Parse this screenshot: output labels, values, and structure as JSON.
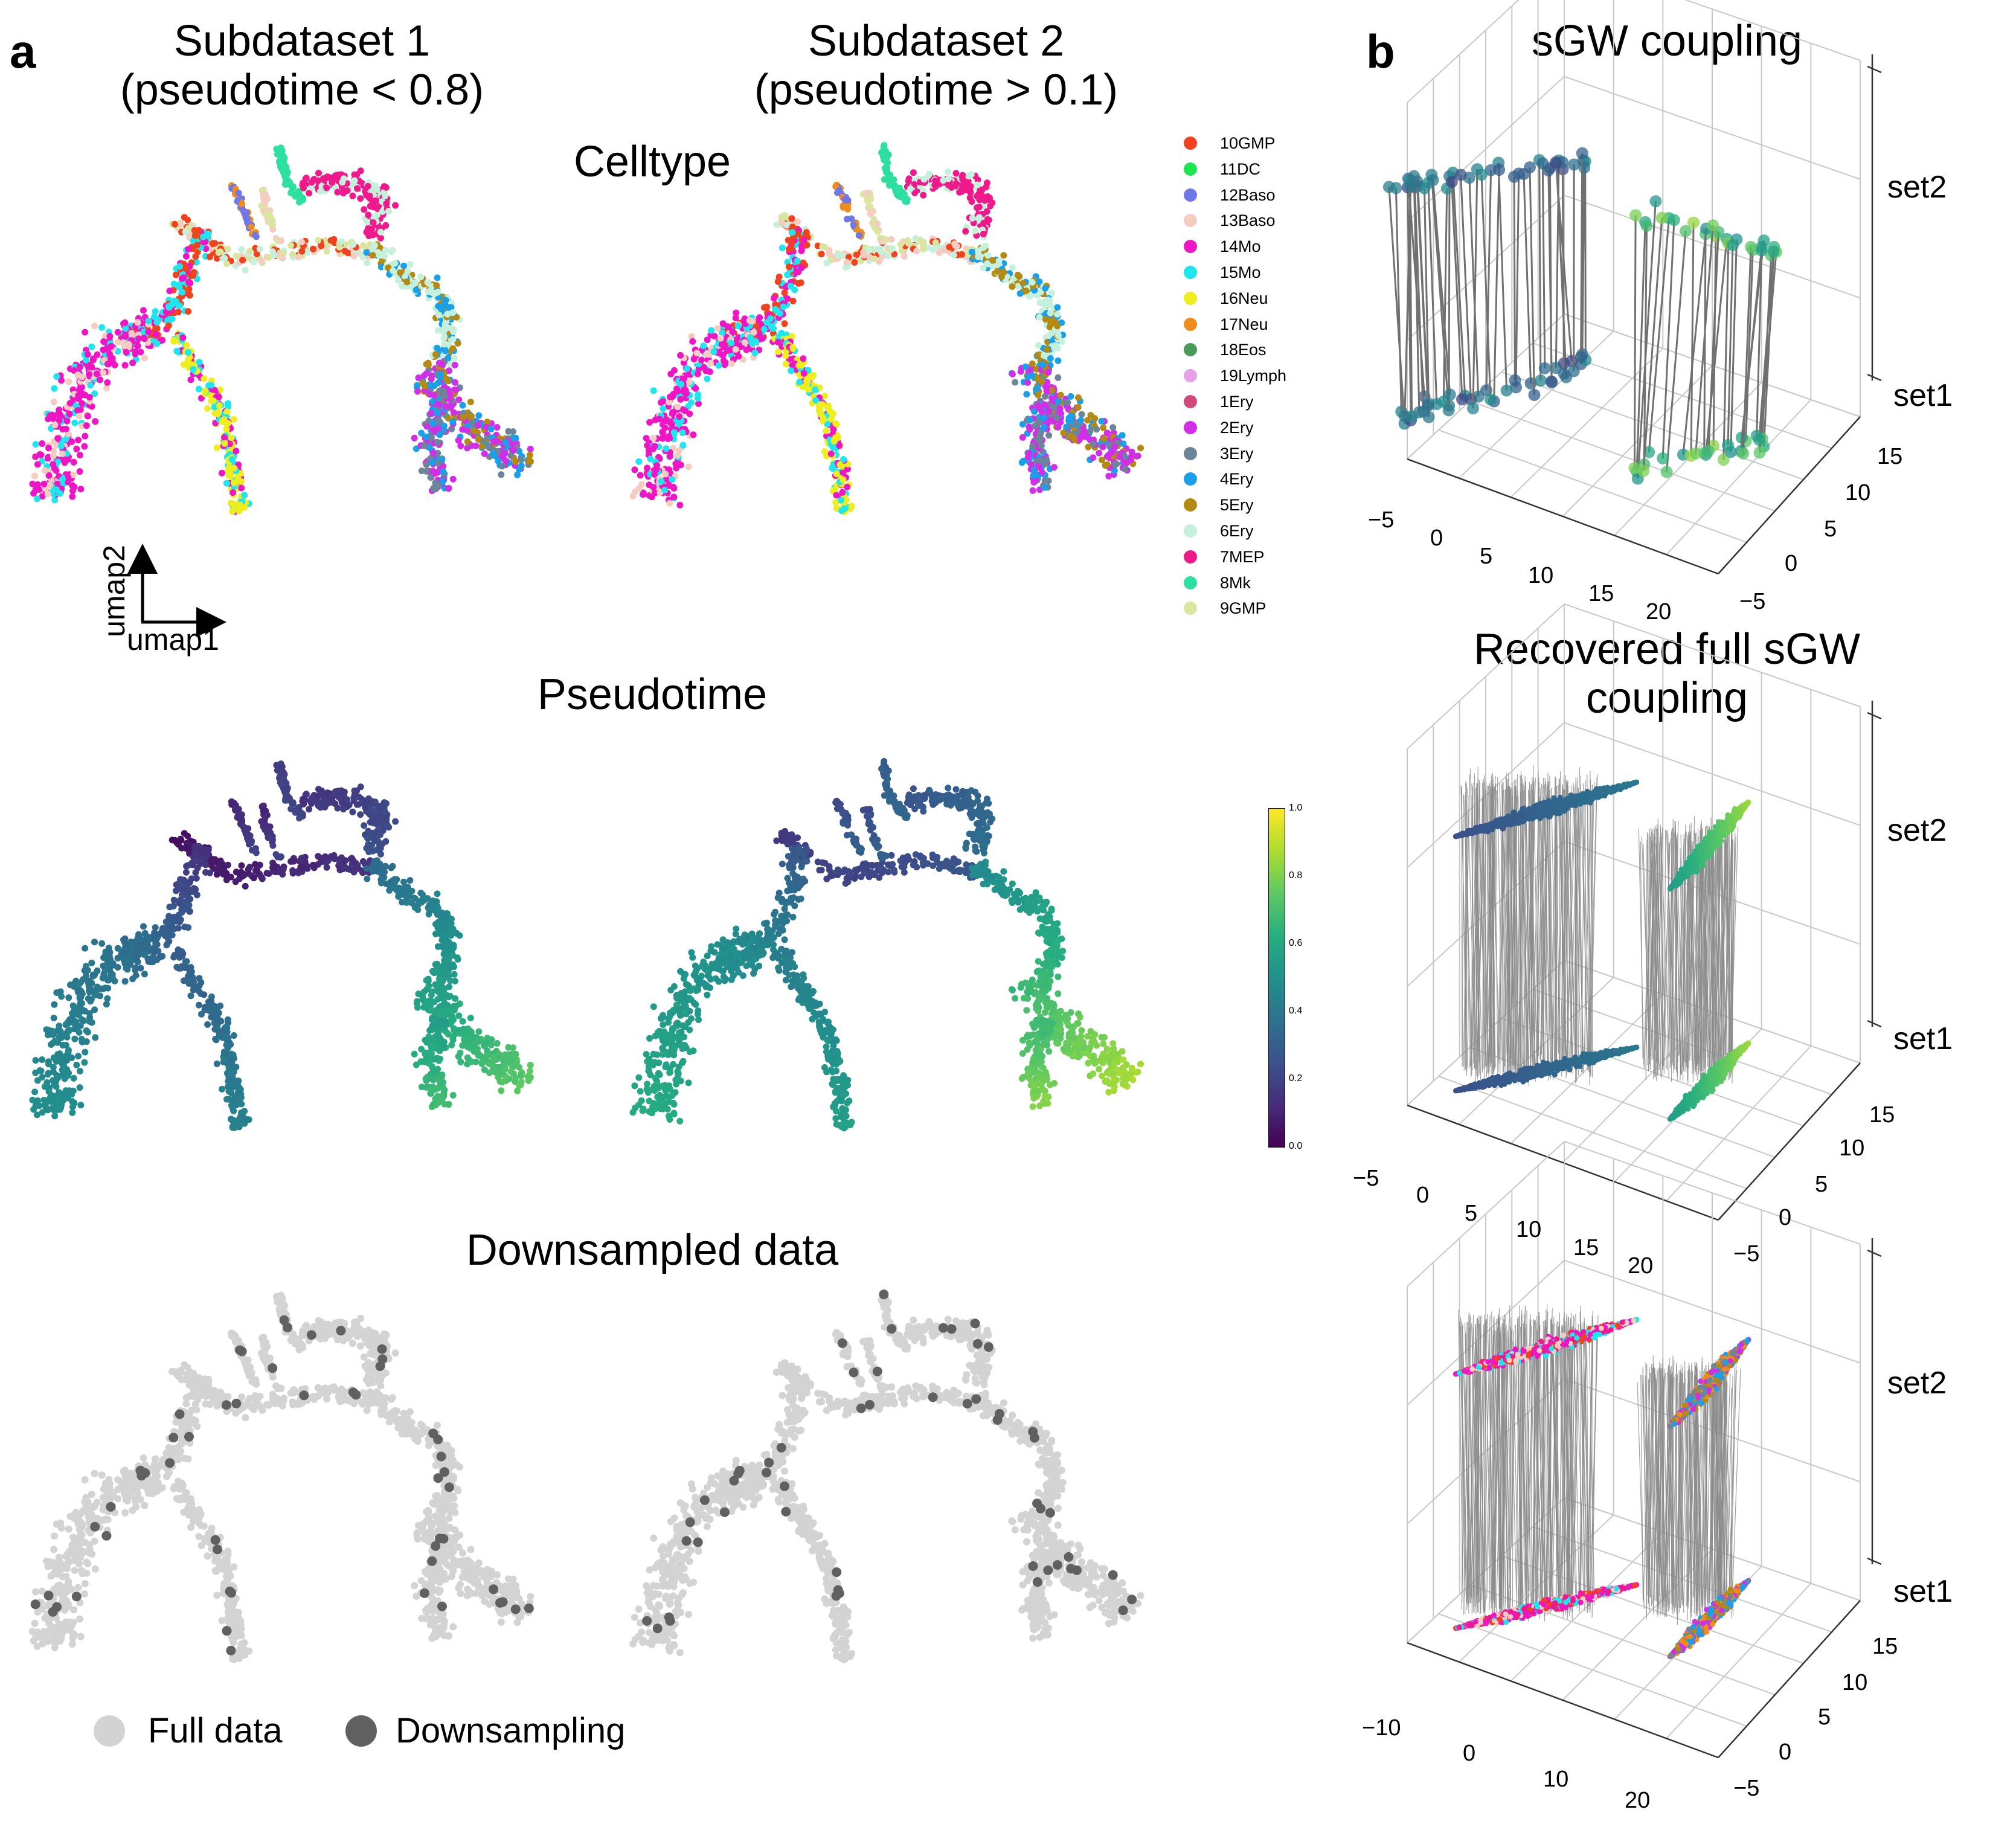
{
  "panels": {
    "a": "a",
    "b": "b"
  },
  "column_titles": {
    "sub1_line1": "Subdataset 1",
    "sub1_line2": "(pseudotime < 0.8)",
    "sub2_line1": "Subdataset 2",
    "sub2_line2": "(pseudotime > 0.1)"
  },
  "row_titles": {
    "celltype": "Celltype",
    "pseudotime": "Pseudotime",
    "downsampled": "Downsampled data"
  },
  "axes_arrows": {
    "x": "umap1",
    "y": "umap2"
  },
  "celltype_legend": [
    {
      "label": "10GMP",
      "color": "#f0421e"
    },
    {
      "label": "11DC",
      "color": "#1ee650"
    },
    {
      "label": "12Baso",
      "color": "#6e78e6"
    },
    {
      "label": "13Baso",
      "color": "#f5cdc0"
    },
    {
      "label": "14Mo",
      "color": "#ee16c4"
    },
    {
      "label": "15Mo",
      "color": "#1ee6ee"
    },
    {
      "label": "16Neu",
      "color": "#eeee1e"
    },
    {
      "label": "17Neu",
      "color": "#f08c1e"
    },
    {
      "label": "18Eos",
      "color": "#4a9a5a"
    },
    {
      "label": "19Lymph",
      "color": "#e8a0e8"
    },
    {
      "label": "1Ery",
      "color": "#d24a7a"
    },
    {
      "label": "2Ery",
      "color": "#d22ee8"
    },
    {
      "label": "3Ery",
      "color": "#6e8498"
    },
    {
      "label": "4Ery",
      "color": "#1aa0e8"
    },
    {
      "label": "5Ery",
      "color": "#b48a12"
    },
    {
      "label": "6Ery",
      "color": "#c4f0dc"
    },
    {
      "label": "7MEP",
      "color": "#ee1a8c"
    },
    {
      "label": "8Mk",
      "color": "#2ee0a0"
    },
    {
      "label": "9GMP",
      "color": "#d8e6a0"
    }
  ],
  "colorbar": {
    "ticks": [
      "1.0",
      "0.8",
      "0.6",
      "0.4",
      "0.2",
      "0.0"
    ],
    "min": 0.0,
    "max": 1.0,
    "colormap": "viridis"
  },
  "bottom_legend": {
    "full": {
      "label": "Full data",
      "color": "#d3d3d3"
    },
    "down": {
      "label": "Downsampling",
      "color": "#606060"
    }
  },
  "panel_b": {
    "title1": "sGW coupling",
    "title2_line1": "Recovered full sGW",
    "title2_line2": "coupling",
    "set2": "set2",
    "set1": "set1",
    "plot1": {
      "x_ticks": [
        "−5",
        "0",
        "5",
        "10",
        "15",
        "20"
      ],
      "y_ticks": [
        "15",
        "10",
        "5",
        "0",
        "−5"
      ]
    },
    "plot2": {
      "x_ticks": [
        "−5",
        "0",
        "5",
        "10",
        "15",
        "20"
      ],
      "y_ticks": [
        "15",
        "10",
        "5",
        "0",
        "−5"
      ]
    },
    "plot3": {
      "x_ticks": [
        "−10",
        "0",
        "10",
        "20"
      ],
      "y_ticks": [
        "15",
        "10",
        "5",
        "0",
        "−5"
      ]
    }
  },
  "chart_data": [
    {
      "type": "scatter",
      "title": "Celltype",
      "xlabel": "umap1",
      "ylabel": "umap2",
      "color_by": "celltype"
    },
    {
      "type": "scatter",
      "title": "Pseudotime",
      "xlabel": "umap1",
      "ylabel": "umap2",
      "color_by": "pseudotime",
      "colorbar_range": [
        0.0,
        1.0
      ]
    },
    {
      "type": "scatter",
      "title": "Downsampled data",
      "xlabel": "umap1",
      "ylabel": "umap2",
      "series": [
        {
          "name": "Full data"
        },
        {
          "name": "Downsampling"
        }
      ]
    },
    {
      "type": "scatter",
      "title": "sGW coupling",
      "projection": "3d",
      "z_levels": [
        "set1",
        "set2"
      ],
      "x_ticks": [
        -5,
        0,
        5,
        10,
        15,
        20
      ],
      "y_ticks": [
        -5,
        0,
        5,
        10,
        15
      ]
    },
    {
      "type": "scatter",
      "title": "Recovered full sGW coupling",
      "projection": "3d",
      "z_levels": [
        "set1",
        "set2"
      ],
      "x_ticks": [
        -5,
        0,
        5,
        10,
        15,
        20
      ],
      "y_ticks": [
        -5,
        0,
        5,
        10,
        15
      ]
    },
    {
      "type": "scatter",
      "projection": "3d",
      "z_levels": [
        "set1",
        "set2"
      ],
      "x_ticks": [
        -10,
        0,
        10,
        20
      ],
      "y_ticks": [
        -5,
        0,
        5,
        10,
        15
      ]
    }
  ]
}
